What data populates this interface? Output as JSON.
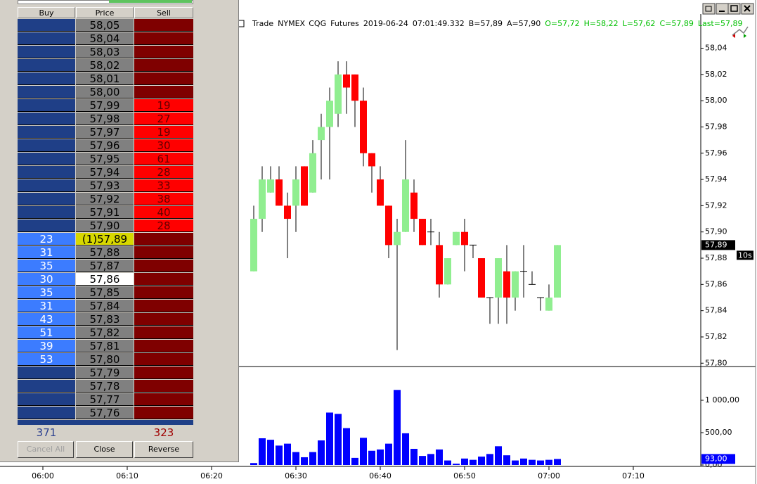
{
  "dom": {
    "headers": [
      "Buy",
      "Price",
      "Sell"
    ],
    "rows": [
      [
        null,
        "58,05",
        null
      ],
      [
        null,
        "58,04",
        null
      ],
      [
        null,
        "58,03",
        null
      ],
      [
        null,
        "58,02",
        null
      ],
      [
        null,
        "58,01",
        null
      ],
      [
        null,
        "58,00",
        null
      ],
      [
        null,
        "57,99",
        19
      ],
      [
        null,
        "57,98",
        27
      ],
      [
        null,
        "57,97",
        19
      ],
      [
        null,
        "57,96",
        30
      ],
      [
        null,
        "57,95",
        61
      ],
      [
        null,
        "57,94",
        28
      ],
      [
        null,
        "57,93",
        33
      ],
      [
        null,
        "57,92",
        38
      ],
      [
        null,
        "57,91",
        40
      ],
      [
        null,
        "57,90",
        28
      ],
      [
        23,
        "(1)57,89",
        null
      ],
      [
        31,
        "57,88",
        null
      ],
      [
        35,
        "57,87",
        null
      ],
      [
        30,
        "57,86",
        null
      ],
      [
        35,
        "57,85",
        null
      ],
      [
        31,
        "57,84",
        null
      ],
      [
        43,
        "57,83",
        null
      ],
      [
        51,
        "57,82",
        null
      ],
      [
        39,
        "57,81",
        null
      ],
      [
        53,
        "57,80",
        null
      ],
      [
        null,
        "57,79",
        null
      ],
      [
        null,
        "57,78",
        null
      ],
      [
        null,
        "57,77",
        null
      ],
      [
        null,
        "57,76",
        null
      ]
    ],
    "buy_total": 371,
    "sell_total": 323,
    "buttons": [
      "Cancel All",
      "Close",
      "Reverse"
    ]
  },
  "chart_data": {
    "type": "candlestick",
    "header": [
      "Trade",
      "NYMEX",
      "CQG",
      "Futures",
      "2019-06-24",
      "07:01:49.332",
      "B=57,89",
      "A=57,90"
    ],
    "header_stats": [
      "O=57,72",
      "H=58,22",
      "L=57,62",
      "C=57,89",
      "Last=57,89"
    ],
    "interval": "10s",
    "x": [
      "06:25",
      "06:26",
      "06:27",
      "06:28",
      "06:29",
      "06:30",
      "06:31",
      "06:32",
      "06:33",
      "06:34",
      "06:35",
      "06:36",
      "06:37",
      "06:38",
      "06:39",
      "06:40",
      "06:41",
      "06:42",
      "06:43",
      "06:44",
      "06:45",
      "06:46",
      "06:47",
      "06:48",
      "06:49",
      "06:50",
      "06:51",
      "06:52",
      "06:53",
      "06:54",
      "06:55",
      "06:56",
      "06:57",
      "06:58",
      "06:59",
      "07:00",
      "07:01"
    ],
    "open": [
      57.87,
      57.91,
      57.93,
      57.94,
      57.92,
      57.92,
      57.95,
      57.93,
      57.97,
      57.98,
      57.99,
      58.02,
      58.02,
      58.0,
      57.96,
      57.94,
      57.92,
      57.89,
      57.9,
      57.93,
      57.91,
      57.9,
      57.89,
      57.86,
      57.89,
      57.9,
      57.89,
      57.88,
      57.85,
      57.85,
      57.87,
      57.85,
      57.87,
      57.86,
      57.85,
      57.84,
      57.85
    ],
    "high": [
      57.92,
      57.95,
      57.95,
      57.95,
      57.93,
      57.95,
      57.95,
      57.97,
      57.99,
      58.01,
      58.03,
      58.03,
      58.02,
      58.01,
      57.96,
      57.95,
      57.92,
      57.91,
      57.97,
      57.94,
      57.91,
      57.91,
      57.9,
      57.88,
      57.9,
      57.91,
      57.89,
      57.88,
      57.85,
      57.88,
      57.89,
      57.87,
      57.89,
      57.87,
      57.85,
      57.86,
      57.89
    ],
    "low": [
      57.87,
      57.9,
      57.93,
      57.92,
      57.88,
      57.9,
      57.92,
      57.93,
      57.94,
      57.94,
      57.98,
      57.99,
      57.98,
      57.95,
      57.93,
      57.92,
      57.88,
      57.81,
      57.9,
      57.9,
      57.89,
      57.89,
      57.85,
      57.86,
      57.89,
      57.87,
      57.88,
      57.85,
      57.83,
      57.83,
      57.83,
      57.84,
      57.85,
      57.86,
      57.84,
      57.84,
      57.85
    ],
    "close": [
      57.91,
      57.94,
      57.94,
      57.92,
      57.91,
      57.94,
      57.92,
      57.96,
      57.98,
      58.0,
      58.02,
      58.01,
      58.0,
      57.96,
      57.95,
      57.92,
      57.89,
      57.9,
      57.94,
      57.91,
      57.89,
      57.9,
      57.86,
      57.88,
      57.9,
      57.89,
      57.89,
      57.85,
      57.85,
      57.88,
      57.85,
      57.87,
      57.87,
      57.86,
      57.85,
      57.85,
      57.89
    ],
    "volume": [
      30,
      413,
      390,
      300,
      330,
      200,
      120,
      200,
      380,
      810,
      790,
      570,
      110,
      420,
      220,
      240,
      330,
      1160,
      490,
      250,
      140,
      170,
      240,
      70,
      20,
      100,
      80,
      130,
      170,
      290,
      150,
      70,
      100,
      80,
      70,
      80,
      93
    ],
    "up_color": "#90ee90",
    "down_color": "#ff0000",
    "volume_color": "#0000ff",
    "xlim": [
      "05:55",
      "07:18"
    ],
    "xticks": [
      "06:00",
      "06:10",
      "06:20",
      "06:30",
      "06:40",
      "06:50",
      "07:00",
      "07:10"
    ],
    "ylim": [
      57.798,
      58.066
    ],
    "yticks": [
      {
        "value": 58.04,
        "label": "58,04"
      },
      {
        "value": 58.02,
        "label": "58,02"
      },
      {
        "value": 58.0,
        "label": "58,00"
      },
      {
        "value": 57.98,
        "label": "57,98"
      },
      {
        "value": 57.96,
        "label": "57,96"
      },
      {
        "value": 57.94,
        "label": "57,94"
      },
      {
        "value": 57.92,
        "label": "57,92"
      },
      {
        "value": 57.9,
        "label": "57,90"
      },
      {
        "value": 57.88,
        "label": "57,88"
      },
      {
        "value": 57.86,
        "label": "57,86"
      },
      {
        "value": 57.84,
        "label": "57,84"
      },
      {
        "value": 57.82,
        "label": "57,82"
      },
      {
        "value": 57.8,
        "label": "57,80"
      }
    ],
    "last_marker": {
      "value": 57.89,
      "label": "57,89"
    },
    "volume_ylim": [
      0,
      1478
    ],
    "volume_yticks": [
      {
        "value": 1000,
        "label": "1 000,00"
      },
      {
        "value": 500,
        "label": "500,00"
      },
      {
        "value": 0,
        "label": "0,00"
      }
    ],
    "volume_marker": {
      "value": 93,
      "label": "93,00"
    }
  }
}
